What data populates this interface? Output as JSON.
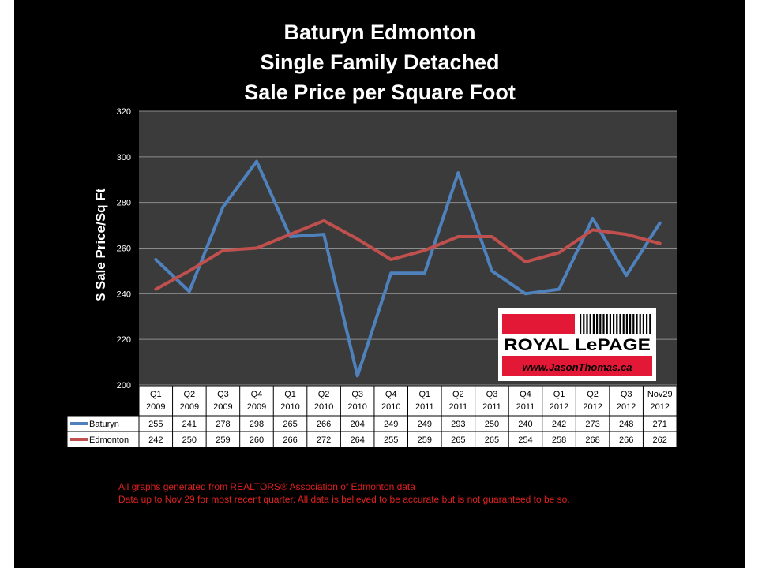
{
  "chart_data": {
    "type": "line",
    "title": [
      "Baturyn Edmonton",
      "Single Family Detached",
      "Sale Price per Square Foot"
    ],
    "ylabel": "$ Sale Price/Sq Ft",
    "ylim": [
      200,
      320
    ],
    "yticks": [
      200,
      220,
      240,
      260,
      280,
      300,
      320
    ],
    "grid": true,
    "categories": [
      [
        "Q1",
        "2009"
      ],
      [
        "Q2",
        "2009"
      ],
      [
        "Q3",
        "2009"
      ],
      [
        "Q4",
        "2009"
      ],
      [
        "Q1",
        "2010"
      ],
      [
        "Q2",
        "2010"
      ],
      [
        "Q3",
        "2010"
      ],
      [
        "Q4",
        "2010"
      ],
      [
        "Q1",
        "2011"
      ],
      [
        "Q2",
        "2011"
      ],
      [
        "Q3",
        "2011"
      ],
      [
        "Q4",
        "2011"
      ],
      [
        "Q1",
        "2012"
      ],
      [
        "Q2",
        "2012"
      ],
      [
        "Q3",
        "2012"
      ],
      [
        "Nov29",
        "2012"
      ]
    ],
    "series": [
      {
        "name": "Baturyn",
        "color": "#4f81bd",
        "values": [
          255,
          241,
          278,
          298,
          265,
          266,
          204,
          249,
          249,
          293,
          250,
          240,
          242,
          273,
          248,
          271
        ]
      },
      {
        "name": "Edmonton",
        "color": "#c0504d",
        "values": [
          242,
          250,
          259,
          260,
          266,
          272,
          264,
          255,
          259,
          265,
          265,
          254,
          258,
          268,
          266,
          262
        ]
      }
    ]
  },
  "logo": {
    "brand": "ROYAL LePAGE",
    "website": "www.JasonThomas.ca"
  },
  "footnotes": [
    "All graphs generated from REALTORS® Association of Edmonton data",
    "Data up to Nov 29  for most recent quarter. All data is believed to be accurate but is not guaranteed to be so."
  ]
}
